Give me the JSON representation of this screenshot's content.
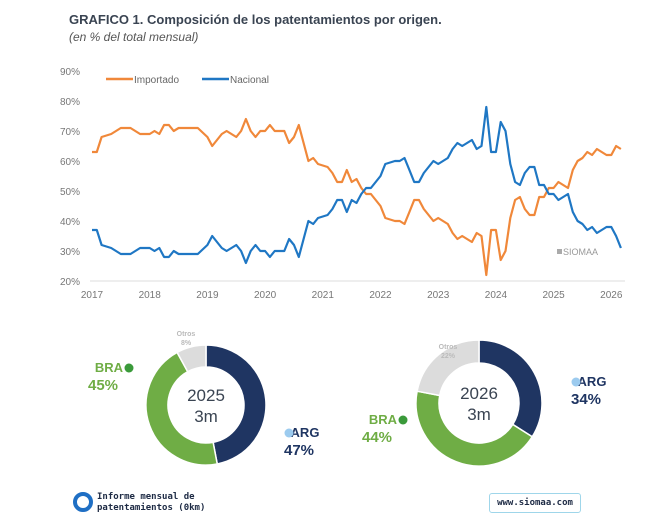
{
  "title": "GRAFICO 1. Composición de los patentamientos por origen.",
  "subtitle": "(en % del total mensual)",
  "watermark": "SIOMAA",
  "footer": {
    "line1": "Informe mensual de",
    "line2": "patentamientos (0km)",
    "url": "www.siomaa.com"
  },
  "chart_data": [
    {
      "type": "line",
      "ylim": [
        20,
        90
      ],
      "yticks": [
        "20%",
        "30%",
        "40%",
        "50%",
        "60%",
        "70%",
        "80%",
        "90%"
      ],
      "xticks": [
        "2017",
        "2018",
        "2019",
        "2020",
        "2021",
        "2022",
        "2023",
        "2024",
        "2025",
        "2026"
      ],
      "legend": "top-left",
      "grid": false,
      "x": [
        "2017-01",
        "2017-02",
        "2017-03",
        "2017-05",
        "2017-07",
        "2017-09",
        "2017-11",
        "2018-01",
        "2018-02",
        "2018-03",
        "2018-04",
        "2018-05",
        "2018-06",
        "2018-07",
        "2018-09",
        "2018-11",
        "2019-01",
        "2019-02",
        "2019-04",
        "2019-05",
        "2019-07",
        "2019-08",
        "2019-09",
        "2019-10",
        "2019-11",
        "2019-12",
        "2020-01",
        "2020-02",
        "2020-03",
        "2020-05",
        "2020-06",
        "2020-07",
        "2020-08",
        "2020-09",
        "2020-10",
        "2020-11",
        "2020-12",
        "2021-02",
        "2021-03",
        "2021-04",
        "2021-05",
        "2021-06",
        "2021-07",
        "2021-08",
        "2021-09",
        "2021-10",
        "2021-11",
        "2022-01",
        "2022-02",
        "2022-04",
        "2022-05",
        "2022-06",
        "2022-07",
        "2022-08",
        "2022-09",
        "2022-10",
        "2022-11",
        "2022-12",
        "2023-01",
        "2023-03",
        "2023-04",
        "2023-05",
        "2023-06",
        "2023-08",
        "2023-09",
        "2023-10",
        "2023-11",
        "2023-12",
        "2024-01",
        "2024-02",
        "2024-03",
        "2024-04",
        "2024-05",
        "2024-06",
        "2024-07",
        "2024-08",
        "2024-09",
        "2024-10",
        "2024-11",
        "2024-12",
        "2025-01",
        "2025-02",
        "2025-03",
        "2025-04",
        "2025-05",
        "2025-06",
        "2025-07",
        "2025-08",
        "2025-09",
        "2025-10",
        "2025-11",
        "2025-12",
        "2026-01",
        "2026-02",
        "2026-03"
      ],
      "series": [
        {
          "name": "Importado",
          "color": "#f0883a",
          "values": [
            63,
            63,
            68,
            69,
            71,
            71,
            69,
            69,
            70,
            69,
            72,
            72,
            70,
            71,
            71,
            71,
            68,
            65,
            69,
            70,
            68,
            70,
            74,
            70,
            68,
            70,
            70,
            72,
            70,
            70,
            66,
            68,
            72,
            66,
            60,
            61,
            59,
            58,
            56,
            53,
            53,
            57,
            53,
            54,
            51,
            49,
            49,
            45,
            41,
            40,
            40,
            39,
            43,
            47,
            47,
            44,
            42,
            40,
            41,
            39,
            36,
            34,
            35,
            33,
            36,
            35,
            22,
            37,
            37,
            27,
            30,
            41,
            47,
            48,
            44,
            42,
            42,
            48,
            48,
            51,
            51,
            53,
            52,
            51,
            57,
            60,
            61,
            63,
            62,
            64,
            63,
            62,
            62,
            65,
            64
          ]
        },
        {
          "name": "Nacional",
          "color": "#1f77c4",
          "values": [
            37,
            37,
            32,
            31,
            29,
            29,
            31,
            31,
            30,
            31,
            28,
            28,
            30,
            29,
            29,
            29,
            32,
            35,
            31,
            30,
            32,
            30,
            26,
            30,
            32,
            30,
            30,
            28,
            30,
            30,
            34,
            32,
            28,
            34,
            40,
            39,
            41,
            42,
            44,
            47,
            47,
            43,
            47,
            46,
            49,
            51,
            51,
            55,
            59,
            60,
            60,
            61,
            57,
            53,
            53,
            56,
            58,
            60,
            59,
            61,
            64,
            66,
            65,
            67,
            64,
            65,
            78,
            63,
            63,
            73,
            70,
            59,
            53,
            52,
            56,
            58,
            58,
            52,
            52,
            49,
            49,
            47,
            48,
            49,
            43,
            40,
            39,
            37,
            38,
            36,
            37,
            38,
            38,
            35,
            31
          ]
        }
      ]
    },
    {
      "type": "pie",
      "center_label": [
        "2025",
        "3m"
      ],
      "slices": [
        {
          "label": "ARG",
          "value": 47,
          "display": "47%",
          "color": "#1f3562"
        },
        {
          "label": "BRA",
          "value": 45,
          "display": "45%",
          "color": "#6fad45"
        },
        {
          "label": "Otros",
          "value": 8,
          "display": "8%",
          "color": "#dcdcdc"
        }
      ]
    },
    {
      "type": "pie",
      "center_label": [
        "2026",
        "3m"
      ],
      "slices": [
        {
          "label": "ARG",
          "value": 34,
          "display": "34%",
          "color": "#1f3562"
        },
        {
          "label": "BRA",
          "value": 44,
          "display": "44%",
          "color": "#6fad45"
        },
        {
          "label": "Otros",
          "value": 22,
          "display": "22%",
          "color": "#dcdcdc"
        }
      ]
    }
  ]
}
